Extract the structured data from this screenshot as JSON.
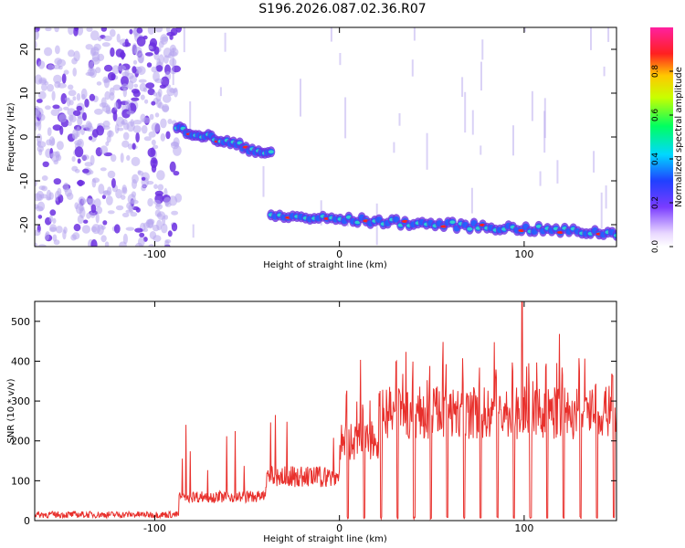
{
  "title": "S196.2026.087.02.36.R07",
  "colors": {
    "snr_line": "#e8302c",
    "blob_light": "#b7a6ee",
    "blob_dark": "#6b2fe0",
    "ridge": "#2060ff",
    "ridge_core": "#30d0d0",
    "hot": "#ff2020"
  },
  "chart_data": [
    {
      "type": "heatmap",
      "name": "spectrogram",
      "title": "S196.2026.087.02.36.R07",
      "xlabel": "Height of straight line (km)",
      "ylabel": "Frequency (Hz)",
      "xlim": [
        -165,
        150
      ],
      "ylim": [
        -25,
        25
      ],
      "xticks": [
        -100,
        0,
        100
      ],
      "yticks": [
        -20,
        -10,
        0,
        10,
        20
      ],
      "colorbar": {
        "label": "Normalized spectral amplitude",
        "range": [
          0.0,
          1.0
        ],
        "ticks": [
          0.0,
          0.2,
          0.4,
          0.6,
          0.8
        ]
      },
      "features": [
        {
          "name": "noise",
          "x_range": [
            -165,
            -87
          ],
          "freq_range": [
            -25,
            25
          ]
        },
        {
          "name": "ridge-1",
          "x_range": [
            -88,
            -37
          ],
          "freq_start": 2,
          "freq_end": -4
        },
        {
          "name": "ridge-2",
          "x_range": [
            -37,
            150
          ],
          "freq_start": -18,
          "freq_end": -22
        }
      ]
    },
    {
      "type": "line",
      "name": "snr",
      "xlabel": "Height of straight line (km)",
      "ylabel": "SNR (10 * v/v)",
      "xlim": [
        -165,
        150
      ],
      "ylim": [
        0,
        550
      ],
      "xticks": [
        -100,
        0,
        100
      ],
      "yticks": [
        0,
        100,
        200,
        300,
        400,
        500
      ],
      "segments": [
        {
          "x_range": [
            -165,
            -87
          ],
          "level": 15
        },
        {
          "x_range": [
            -87,
            -40
          ],
          "level": 60
        },
        {
          "x_range": [
            -40,
            0
          ],
          "level": 110
        },
        {
          "x_range": [
            0,
            22
          ],
          "level": 200
        },
        {
          "x_range": [
            22,
            150
          ],
          "level": 270
        }
      ],
      "peak": {
        "x": 99,
        "y": 550
      }
    }
  ]
}
